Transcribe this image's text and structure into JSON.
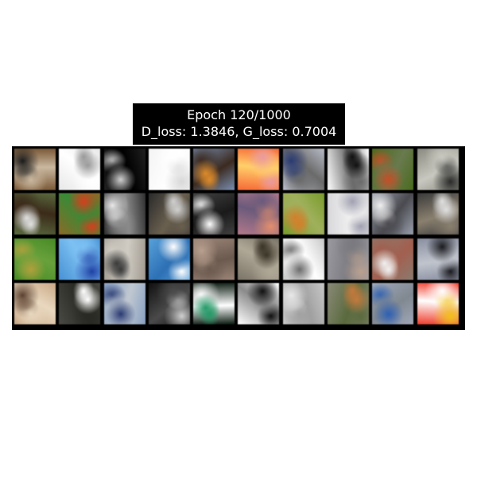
{
  "figure": {
    "title_line1": "Epoch 120/1000",
    "title_line2": "D_loss: 1.3846, G_loss: 0.7004"
  },
  "grid": {
    "rows": 4,
    "cols": 10,
    "tiles": [
      {
        "name": "generated-sample-r1c1",
        "c1": "#7a5a3a",
        "c2": "#1a1a1a",
        "c3": "#c9b8a0"
      },
      {
        "name": "generated-sample-r1c2",
        "c1": "#e8e8e8",
        "c2": "#9a9a9a",
        "c3": "#ffffff"
      },
      {
        "name": "generated-sample-r1c3",
        "c1": "#202020",
        "c2": "#d0d0d0",
        "c3": "#000000"
      },
      {
        "name": "generated-sample-r1c4",
        "c1": "#f4f4f4",
        "c2": "#d8d8d8",
        "c3": "#ffffff"
      },
      {
        "name": "generated-sample-r1c5",
        "c1": "#7a8fb0",
        "c2": "#d88a30",
        "c3": "#3a2a20"
      },
      {
        "name": "generated-sample-r1c6",
        "c1": "#f06a3a",
        "c2": "#e89aa0",
        "c3": "#ffd070"
      },
      {
        "name": "generated-sample-r1c7",
        "c1": "#b8bcc8",
        "c2": "#2a3a70",
        "c3": "#6a6a6a"
      },
      {
        "name": "generated-sample-r1c8",
        "c1": "#ffffff",
        "c2": "#101010",
        "c3": "#6a6a6a"
      },
      {
        "name": "generated-sample-r1c9",
        "c1": "#4a6a20",
        "c2": "#c0502a",
        "c3": "#6a7a50"
      },
      {
        "name": "generated-sample-r1c10",
        "c1": "#8a8a80",
        "c2": "#2a2a2a",
        "c3": "#c8c8c0"
      },
      {
        "name": "generated-sample-r2c1",
        "c1": "#5a6a40",
        "c2": "#e0e0e0",
        "c3": "#3a2a1a"
      },
      {
        "name": "generated-sample-r2c2",
        "c1": "#8a6a2a",
        "c2": "#d04020",
        "c3": "#3a8a3a"
      },
      {
        "name": "generated-sample-r2c3",
        "c1": "#303030",
        "c2": "#e8e8e8",
        "c3": "#8a8a8a"
      },
      {
        "name": "generated-sample-r2c4",
        "c1": "#2a2a2a",
        "c2": "#d0d0d0",
        "c3": "#6a6050"
      },
      {
        "name": "generated-sample-r2c5",
        "c1": "#404040",
        "c2": "#ffffff",
        "c3": "#1a1a1a"
      },
      {
        "name": "generated-sample-r2c6",
        "c1": "#b07a8a",
        "c2": "#e09070",
        "c3": "#6a5a7a"
      },
      {
        "name": "generated-sample-r2c7",
        "c1": "#7a9a30",
        "c2": "#d08030",
        "c3": "#a0b060"
      },
      {
        "name": "generated-sample-r2c8",
        "c1": "#d8d8dc",
        "c2": "#a0a0b0",
        "c3": "#f0f0f0"
      },
      {
        "name": "generated-sample-r2c9",
        "c1": "#9aa0ac",
        "c2": "#f0f0f0",
        "c3": "#4a4a50"
      },
      {
        "name": "generated-sample-r2c10",
        "c1": "#3a3a3a",
        "c2": "#e0e0e0",
        "c3": "#8a8070"
      },
      {
        "name": "generated-sample-r3c1",
        "c1": "#4a8a2a",
        "c2": "#b0a040",
        "c3": "#6aa040"
      },
      {
        "name": "generated-sample-r3c2",
        "c1": "#4a90d0",
        "c2": "#2040a0",
        "c3": "#80c0f0"
      },
      {
        "name": "generated-sample-r3c3",
        "c1": "#a09a90",
        "c2": "#3a3a3a",
        "c3": "#d0ccc4"
      },
      {
        "name": "generated-sample-r3c4",
        "c1": "#5aa0d8",
        "c2": "#ffffff",
        "c3": "#3070b0"
      },
      {
        "name": "generated-sample-r3c5",
        "c1": "#9a8478",
        "c2": "#b8a090",
        "c3": "#6a5a50"
      },
      {
        "name": "generated-sample-r3c6",
        "c1": "#7a7468",
        "c2": "#3a3428",
        "c3": "#b0a898"
      },
      {
        "name": "generated-sample-r3c7",
        "c1": "#c8c8c8",
        "c2": "#6a6a6a",
        "c3": "#ffffff"
      },
      {
        "name": "generated-sample-r3c8",
        "c1": "#9a9aa0",
        "c2": "#b8a090",
        "c3": "#7a7a80"
      },
      {
        "name": "generated-sample-r3c9",
        "c1": "#8a7a70",
        "c2": "#f0f0f0",
        "c3": "#a06050"
      },
      {
        "name": "generated-sample-r3c10",
        "c1": "#8a90a0",
        "c2": "#1a1a20",
        "c3": "#c0c4cc"
      },
      {
        "name": "generated-sample-r4c1",
        "c1": "#c8a888",
        "c2": "#5a4030",
        "c3": "#e8d8c0"
      },
      {
        "name": "generated-sample-r4c2",
        "c1": "#4a4a44",
        "c2": "#ffffff",
        "c3": "#2a2a24"
      },
      {
        "name": "generated-sample-r4c3",
        "c1": "#8aa0c0",
        "c2": "#2a3a70",
        "c3": "#c0c8d0"
      },
      {
        "name": "generated-sample-r4c4",
        "c1": "#101010",
        "c2": "#d0d0d0",
        "c3": "#4a4a4a"
      },
      {
        "name": "generated-sample-r4c5",
        "c1": "#0a1a10",
        "c2": "#2a9a6a",
        "c3": "#ffffff"
      },
      {
        "name": "generated-sample-r4c6",
        "c1": "#ffffff",
        "c2": "#101010",
        "c3": "#8a8a8a"
      },
      {
        "name": "generated-sample-r4c7",
        "c1": "#c8c8c8",
        "c2": "#e8e8e8",
        "c3": "#a0a0a0"
      },
      {
        "name": "generated-sample-r4c8",
        "c1": "#8a8a78",
        "c2": "#c07a40",
        "c3": "#5a6a40"
      },
      {
        "name": "generated-sample-r4c9",
        "c1": "#a0a8b8",
        "c2": "#3060b0",
        "c3": "#808890"
      },
      {
        "name": "generated-sample-r4c10",
        "c1": "#e84030",
        "c2": "#f0c020",
        "c3": "#ffffff"
      }
    ]
  }
}
